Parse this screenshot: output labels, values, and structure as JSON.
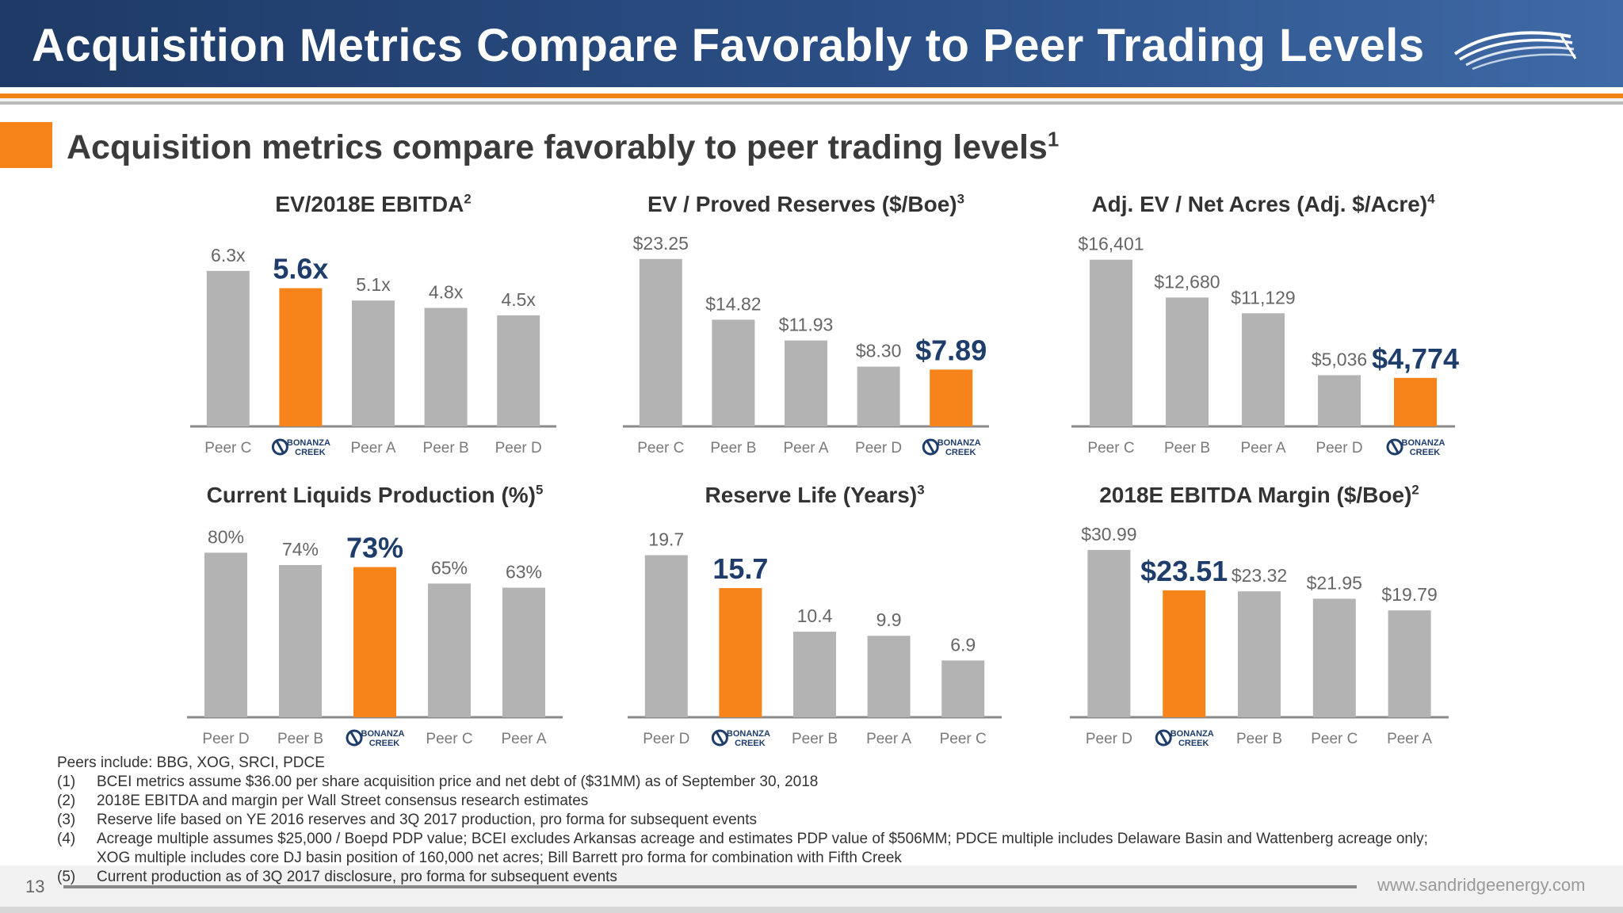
{
  "header": {
    "title": "Acquisition Metrics Compare Favorably to Peer Trading Levels"
  },
  "subtitle": {
    "text": "Acquisition metrics compare favorably to peer trading levels",
    "sup": "1"
  },
  "colors": {
    "grey_bar": "#b3b3b3",
    "orange_bar": "#f7841a",
    "highlight_label": "#1f3d6b",
    "label": "#666666"
  },
  "chart_data": [
    {
      "type": "bar",
      "title": "EV/2018E EBITDA",
      "title_sup": "2",
      "categories": [
        "Peer C",
        "BONANZA CREEK",
        "Peer A",
        "Peer B",
        "Peer D"
      ],
      "values": [
        6.3,
        5.6,
        5.1,
        4.8,
        4.5
      ],
      "value_labels": [
        "6.3x",
        "5.6x",
        "5.1x",
        "4.8x",
        "4.5x"
      ],
      "highlight_index": 1,
      "ylim": [
        0,
        7
      ]
    },
    {
      "type": "bar",
      "title": "EV / Proved Reserves ($/Boe)",
      "title_sup": "3",
      "categories": [
        "Peer C",
        "Peer B",
        "Peer A",
        "Peer D",
        "BONANZA CREEK"
      ],
      "values": [
        23.25,
        14.82,
        11.93,
        8.3,
        7.89
      ],
      "value_labels": [
        "$23.25",
        "$14.82",
        "$11.93",
        "$8.30",
        "$7.89"
      ],
      "highlight_index": 4,
      "ylim": [
        0,
        24
      ]
    },
    {
      "type": "bar",
      "title": "Adj. EV / Net Acres (Adj. $/Acre)",
      "title_sup": "4",
      "categories": [
        "Peer C",
        "Peer B",
        "Peer A",
        "Peer D",
        "BONANZA CREEK"
      ],
      "values": [
        16401,
        12680,
        11129,
        5036,
        4774
      ],
      "value_labels": [
        "$16,401",
        "$12,680",
        "$11,129",
        "$5,036",
        "$4,774"
      ],
      "highlight_index": 4,
      "ylim": [
        0,
        17000
      ]
    },
    {
      "type": "bar",
      "title": "Current Liquids Production (%)",
      "title_sup": "5",
      "categories": [
        "Peer D",
        "Peer B",
        "BONANZA CREEK",
        "Peer C",
        "Peer A"
      ],
      "values": [
        80,
        74,
        73,
        65,
        63
      ],
      "value_labels": [
        "80%",
        "74%",
        "73%",
        "65%",
        "63%"
      ],
      "highlight_index": 2,
      "ylim": [
        0,
        84
      ]
    },
    {
      "type": "bar",
      "title": "Reserve Life (Years)",
      "title_sup": "3",
      "categories": [
        "Peer D",
        "BONANZA CREEK",
        "Peer B",
        "Peer A",
        "Peer C"
      ],
      "values": [
        19.7,
        15.7,
        10.4,
        9.9,
        6.9
      ],
      "value_labels": [
        "19.7",
        "15.7",
        "10.4",
        "9.9",
        "6.9"
      ],
      "highlight_index": 1,
      "ylim": [
        0,
        21
      ]
    },
    {
      "type": "bar",
      "title": "2018E EBITDA Margin ($/Boe)",
      "title_sup": "2",
      "categories": [
        "Peer D",
        "BONANZA CREEK",
        "Peer B",
        "Peer C",
        "Peer A"
      ],
      "values": [
        30.99,
        23.51,
        23.32,
        21.95,
        19.79
      ],
      "value_labels": [
        "$30.99",
        "$23.51",
        "$23.32",
        "$21.95",
        "$19.79"
      ],
      "highlight_index": 1,
      "ylim": [
        0,
        32
      ]
    }
  ],
  "footnotes": {
    "peers": "Peers include: BBG, XOG, SRCI, PDCE",
    "items": [
      {
        "num": "(1)",
        "text": "BCEI metrics assume $36.00 per share acquisition price and net debt of ($31MM) as of September 30, 2018"
      },
      {
        "num": "(2)",
        "text": "2018E EBITDA and margin per Wall Street consensus research estimates"
      },
      {
        "num": "(3)",
        "text": "Reserve life based on YE 2016 reserves and 3Q 2017 production, pro forma for subsequent events"
      },
      {
        "num": "(4)",
        "text": "Acreage multiple assumes $25,000 / Boepd PDP value; BCEI excludes Arkansas acreage and estimates PDP value of $506MM; PDCE multiple includes Delaware Basin and Wattenberg acreage only;"
      },
      {
        "num": "",
        "text": "XOG multiple includes core DJ basin position of 160,000 net acres; Bill Barrett pro forma for combination with Fifth Creek"
      },
      {
        "num": "(5)",
        "text": "Current production as of 3Q 2017 disclosure, pro forma for subsequent events"
      }
    ]
  },
  "footer": {
    "page": "13",
    "website": "www.sandridgeenergy.com"
  }
}
